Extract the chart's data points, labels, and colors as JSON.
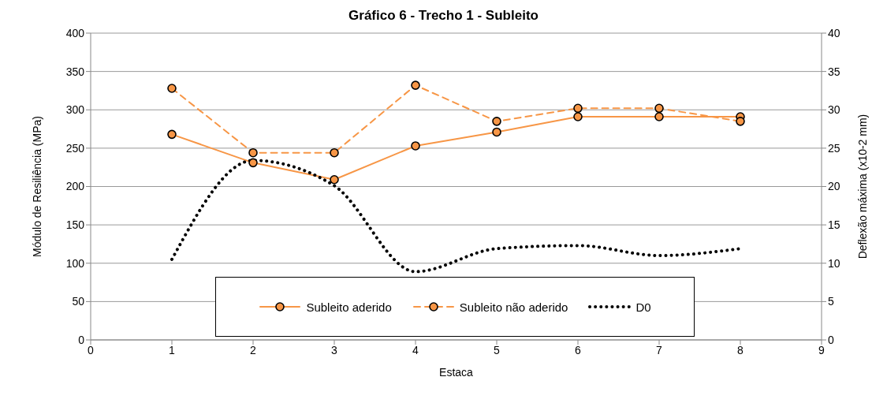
{
  "chart_data": {
    "type": "line",
    "title": "Gráfico 6 - Trecho 1 - Subleito",
    "xlabel": "Estaca",
    "ylabel": "Módulo de Resiliência (MPa)",
    "y2label": "Deflexão máxima (x10-2 mm)",
    "x": [
      1,
      2,
      3,
      4,
      5,
      6,
      7,
      8
    ],
    "series": [
      {
        "name": "Subleito aderido",
        "color": "#f79646",
        "values": [
          268,
          231,
          209,
          253,
          271,
          291,
          291,
          291
        ],
        "marker": "circle",
        "line_style": "solid"
      },
      {
        "name": "Subleito não aderido",
        "color": "#f79646",
        "values": [
          328,
          244,
          244,
          332,
          285,
          302,
          302,
          285
        ],
        "marker": "circle",
        "line_style": "dashed"
      },
      {
        "name": "D0",
        "color": "#000000",
        "values": [
          10.5,
          23.4,
          20.1,
          8.9,
          11.9,
          12.3,
          11,
          11.9
        ],
        "axis": "y2",
        "marker": "none",
        "line_style": "dotted"
      }
    ],
    "xlim": [
      0,
      9
    ],
    "xticks": [
      0,
      1,
      2,
      3,
      4,
      5,
      6,
      7,
      8,
      9
    ],
    "ylim": [
      0,
      400
    ],
    "yticks": [
      0,
      50,
      100,
      150,
      200,
      250,
      300,
      350,
      400
    ],
    "y2lim": [
      0,
      40
    ],
    "y2ticks": [
      0,
      5,
      10,
      15,
      20,
      25,
      30,
      35,
      40
    ],
    "grid": "y",
    "legend": "bottom"
  }
}
